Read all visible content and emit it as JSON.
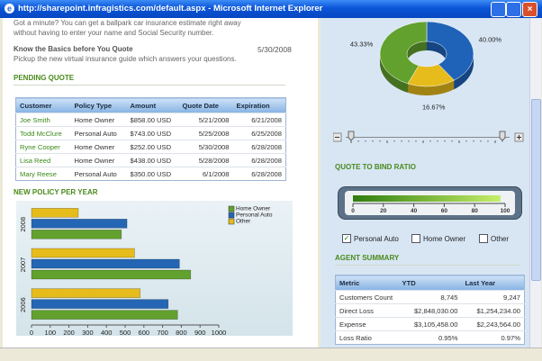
{
  "window": {
    "title": "http://sharepoint.infragistics.com/default.aspx - Microsoft Internet Explorer"
  },
  "intro": {
    "text": "Got a minute? You can get a ballpark car insurance estimate right away without having to enter your name and Social Security number.",
    "heading": "Know the Basics before You Quote",
    "date": "5/30/2008",
    "subtext": "Pickup the new virtual insurance guide which answers your questions."
  },
  "pending_quote": {
    "title": "PENDING QUOTE",
    "columns": [
      "Customer",
      "Policy Type",
      "Amount",
      "Quote Date",
      "Expiration"
    ],
    "rows": [
      [
        "Joe Smith",
        "Home Owner",
        "$858.00 USD",
        "5/21/2008",
        "6/21/2008"
      ],
      [
        "Todd McClure",
        "Personal Auto",
        "$743.00 USD",
        "5/25/2008",
        "6/25/2008"
      ],
      [
        "Ryne Cooper",
        "Home Owner",
        "$252.00 USD",
        "5/30/2008",
        "6/28/2008"
      ],
      [
        "Lisa Reed",
        "Home Owner",
        "$438.00 USD",
        "5/28/2008",
        "6/28/2008"
      ],
      [
        "Mary Reese",
        "Personal Auto",
        "$350.00 USD",
        "6/1/2008",
        "6/28/2008"
      ]
    ]
  },
  "policy_chart": {
    "type": "bar",
    "orientation": "horizontal",
    "title": "NEW POLICY PER YEAR",
    "categories": [
      "2008",
      "2007",
      "2006"
    ],
    "series": [
      {
        "name": "Home Owner",
        "color": "#62a12e",
        "values": [
          480,
          850,
          780
        ]
      },
      {
        "name": "Personal Auto",
        "color": "#2466b4",
        "values": [
          510,
          790,
          730
        ]
      },
      {
        "name": "Other",
        "color": "#e6bb1c",
        "values": [
          250,
          550,
          580
        ]
      }
    ],
    "xlim": [
      0,
      1000
    ],
    "xticks": [
      0,
      100,
      200,
      300,
      400,
      500,
      600,
      700,
      800,
      900,
      1000
    ]
  },
  "share_chart": {
    "type": "donut",
    "values": [
      40,
      16.67,
      43.33
    ],
    "value_labels": [
      "40.00%",
      "16.67%",
      "43.33%"
    ],
    "colors": [
      "#1f63b8",
      "#e6bb1c",
      "#62a12e"
    ]
  },
  "bind_ratio": {
    "type": "gauge",
    "title": "QUOTE TO BIND RATIO",
    "value": 97,
    "range": [
      0,
      100
    ],
    "ticks": [
      0,
      20,
      40,
      60,
      80,
      100
    ]
  },
  "filters": [
    {
      "label": "Personal Auto",
      "checked": true
    },
    {
      "label": "Home Owner",
      "checked": false
    },
    {
      "label": "Other",
      "checked": false
    }
  ],
  "agent_summary": {
    "title": "AGENT SUMMARY",
    "columns": [
      "Metric",
      "YTD",
      "Last Year"
    ],
    "rows": [
      [
        "Customers Count",
        "8,745",
        "9,247"
      ],
      [
        "Direct Loss",
        "$2,848,030.00",
        "$1,254,234.00"
      ],
      [
        "Expense",
        "$3,105,458.00",
        "$2,243,564.00"
      ],
      [
        "Loss Ratio",
        "0.95%",
        "0.97%"
      ]
    ]
  }
}
